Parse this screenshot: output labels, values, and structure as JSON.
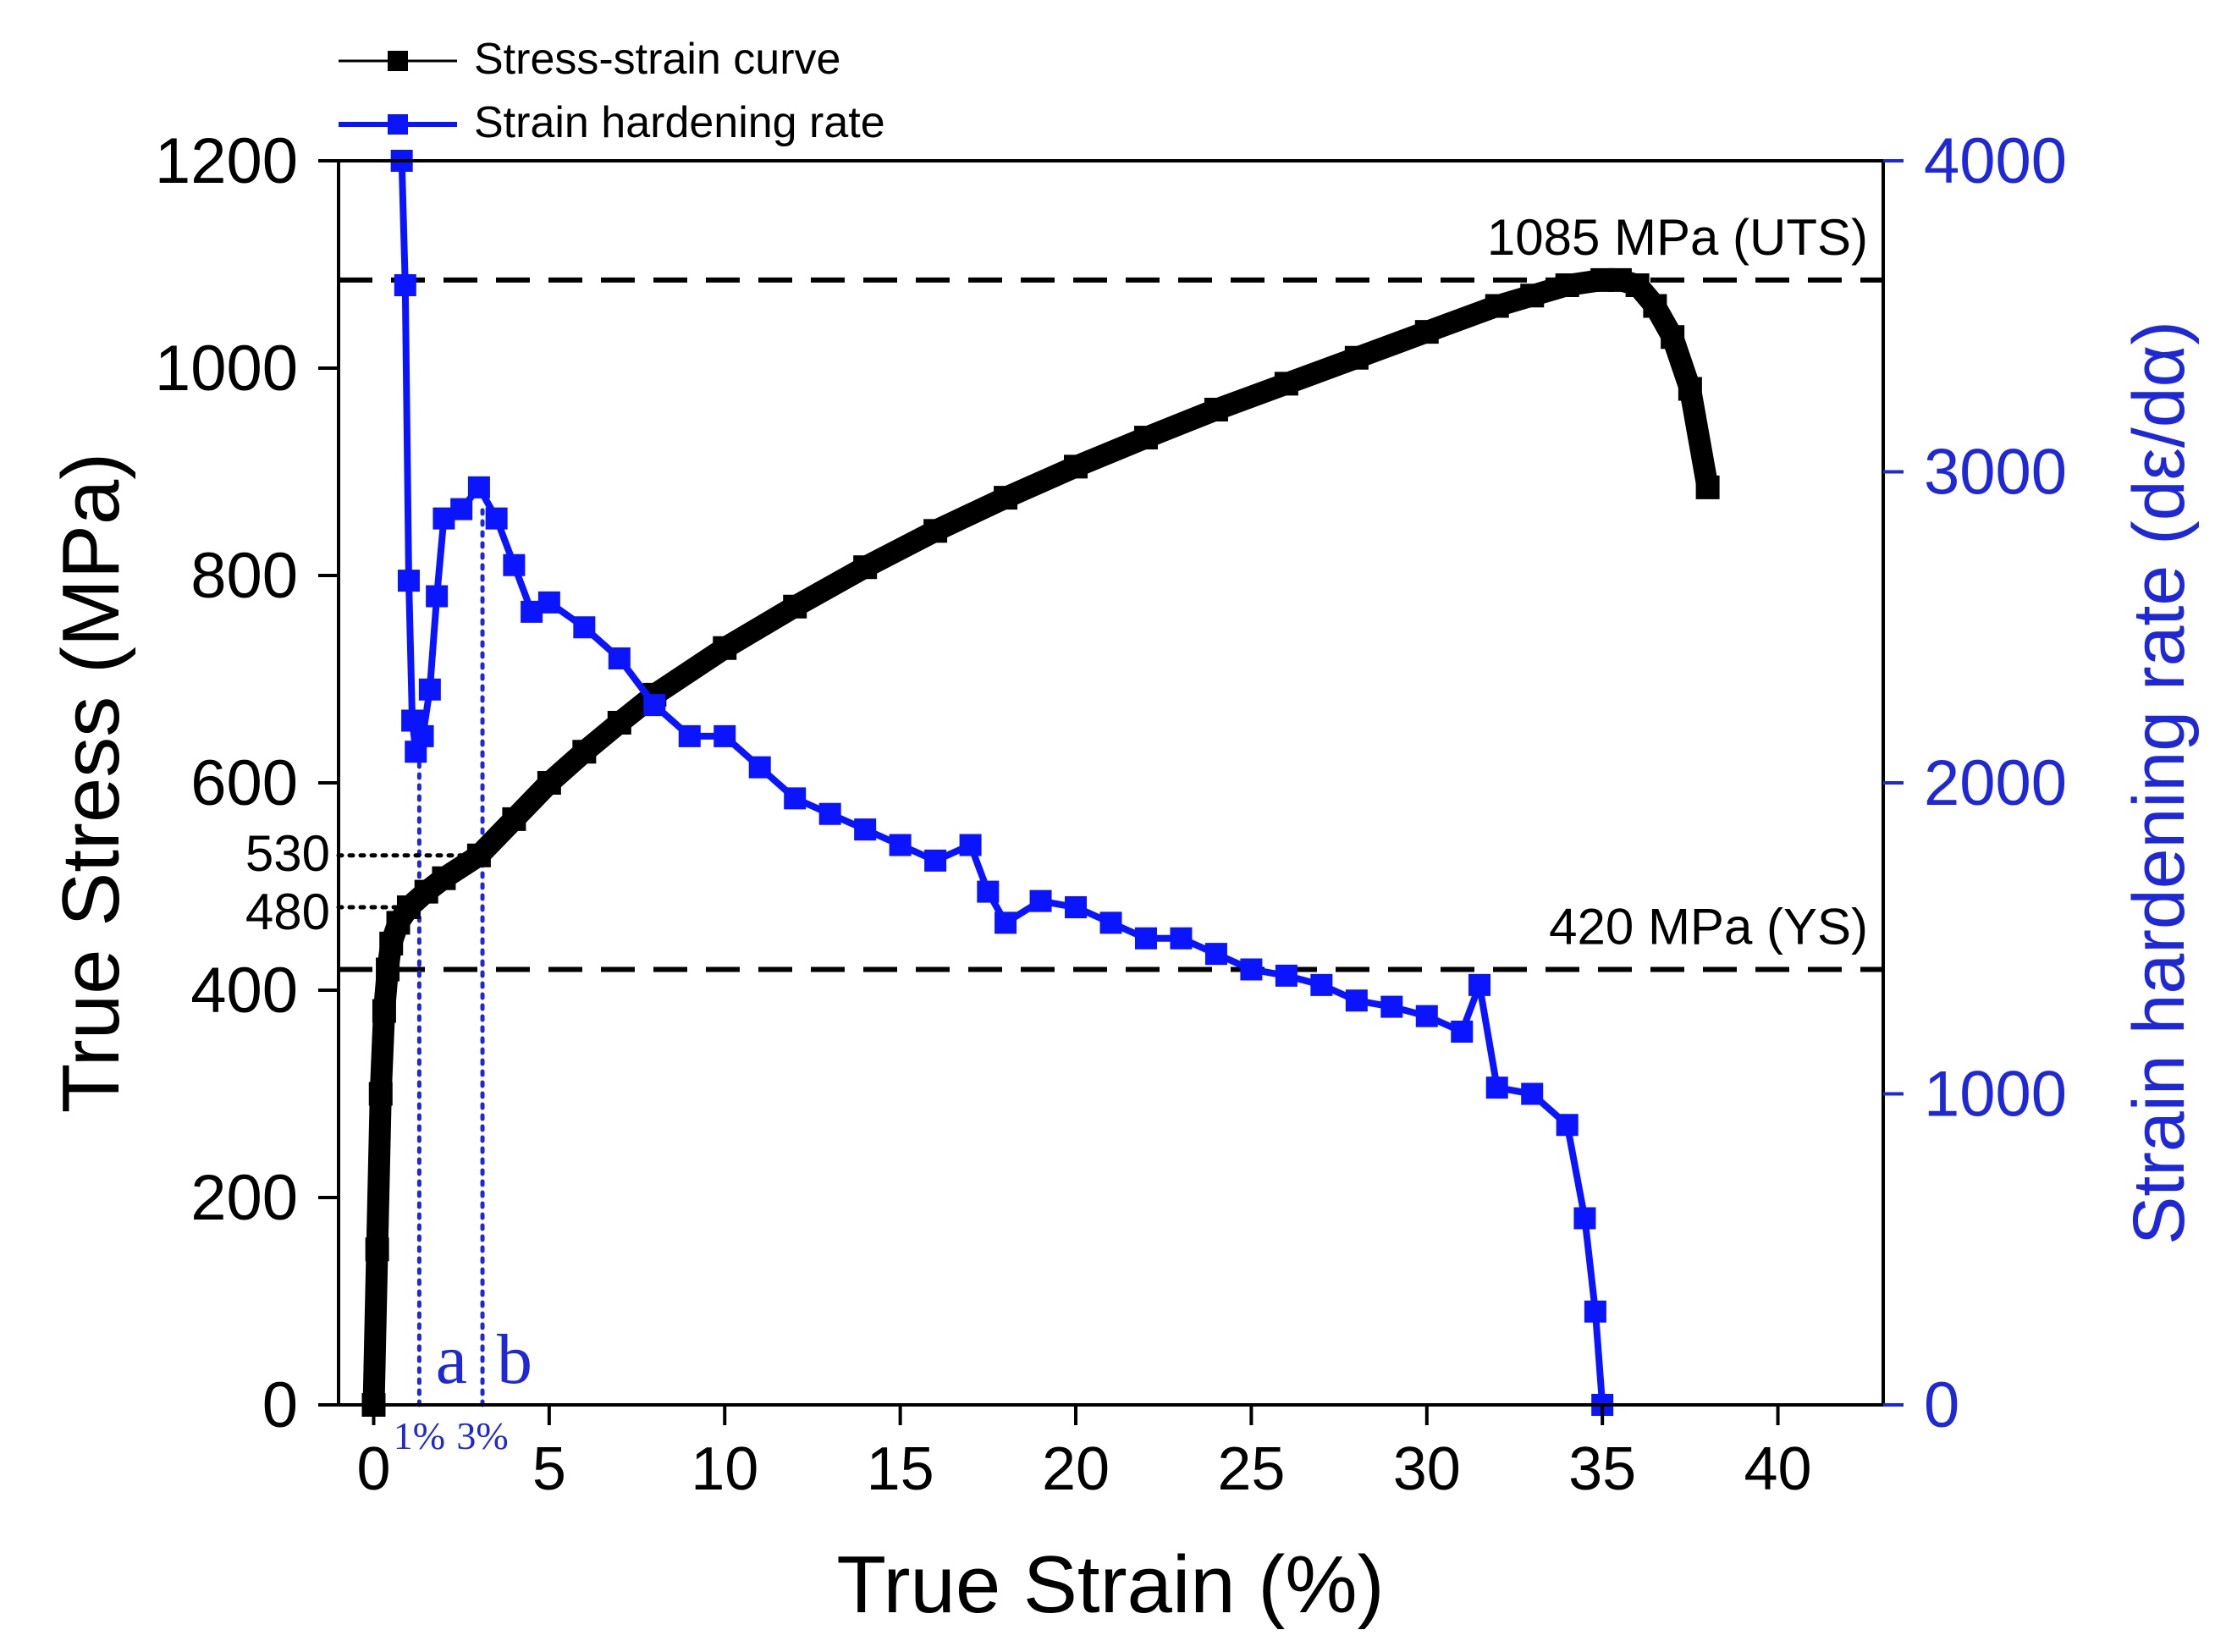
{
  "chart_data": {
    "type": "line",
    "title": "",
    "xlabel": "True Strain (%)",
    "ylabel": "True Stress (MPa)",
    "y2label": "Strain hardening rate (dε/dα)",
    "xlim": [
      -1,
      43
    ],
    "ylim": [
      0,
      1200
    ],
    "y2lim": [
      0,
      4000
    ],
    "x_ticks": [
      0,
      5,
      10,
      15,
      20,
      25,
      30,
      35,
      40
    ],
    "y_ticks": [
      0,
      200,
      400,
      600,
      800,
      1000,
      1200
    ],
    "y2_ticks": [
      0,
      1000,
      2000,
      3000,
      4000
    ],
    "grid": false,
    "legend_position": "top-left",
    "colors": {
      "stress": "#000000",
      "hardening": "#0a14ff",
      "annotation": "#1f28d6"
    },
    "series": [
      {
        "name": "Stress-strain curve",
        "axis": "left",
        "x": [
          0.0,
          0.1,
          0.2,
          0.3,
          0.4,
          0.5,
          0.7,
          1.0,
          1.5,
          2.0,
          3.0,
          4.0,
          5.0,
          6.0,
          7.0,
          8.0,
          10.0,
          12.0,
          14.0,
          16.0,
          18.0,
          20.0,
          22.0,
          24.0,
          26.0,
          28.0,
          30.0,
          32.0,
          33.0,
          34.0,
          35.0,
          35.5,
          36.0,
          36.5,
          37.0,
          37.5,
          38.0
        ],
        "y": [
          0,
          150,
          300,
          380,
          420,
          445,
          465,
          480,
          495,
          508,
          530,
          565,
          600,
          630,
          658,
          685,
          730,
          770,
          808,
          843,
          875,
          905,
          933,
          960,
          985,
          1010,
          1035,
          1060,
          1070,
          1080,
          1085,
          1085,
          1080,
          1060,
          1030,
          980,
          885
        ]
      },
      {
        "name": "Strain hardening rate",
        "axis": "right",
        "x": [
          0.8,
          0.9,
          1.0,
          1.1,
          1.2,
          1.4,
          1.6,
          1.8,
          2.0,
          2.5,
          3.0,
          3.5,
          4.0,
          4.5,
          5.0,
          6.0,
          7.0,
          8.0,
          9.0,
          10.0,
          11.0,
          12.0,
          13.0,
          14.0,
          15.0,
          16.0,
          17.0,
          17.5,
          18.0,
          19.0,
          20.0,
          21.0,
          22.0,
          23.0,
          24.0,
          25.0,
          26.0,
          27.0,
          28.0,
          29.0,
          30.0,
          31.0,
          31.5,
          32.0,
          33.0,
          34.0,
          34.5,
          34.8,
          35.0
        ],
        "y": [
          4000,
          3600,
          2650,
          2200,
          2100,
          2150,
          2300,
          2600,
          2850,
          2880,
          2950,
          2850,
          2700,
          2550,
          2580,
          2500,
          2400,
          2250,
          2150,
          2150,
          2050,
          1950,
          1900,
          1850,
          1800,
          1750,
          1800,
          1650,
          1550,
          1620,
          1600,
          1550,
          1500,
          1500,
          1450,
          1400,
          1380,
          1350,
          1300,
          1280,
          1250,
          1200,
          1350,
          1020,
          1000,
          900,
          600,
          300,
          0
        ]
      }
    ],
    "reference_lines": [
      {
        "y": 1085,
        "label": "1085 MPa (UTS)"
      },
      {
        "y": 420,
        "label": "420 MPa (YS)"
      }
    ],
    "markers": [
      {
        "x": 1.3,
        "y": 480,
        "x_label": "1%",
        "letter": "a",
        "y_label": "480"
      },
      {
        "x": 3.1,
        "y": 530,
        "x_label": "3%",
        "letter": "b",
        "y_label": "530"
      }
    ]
  }
}
